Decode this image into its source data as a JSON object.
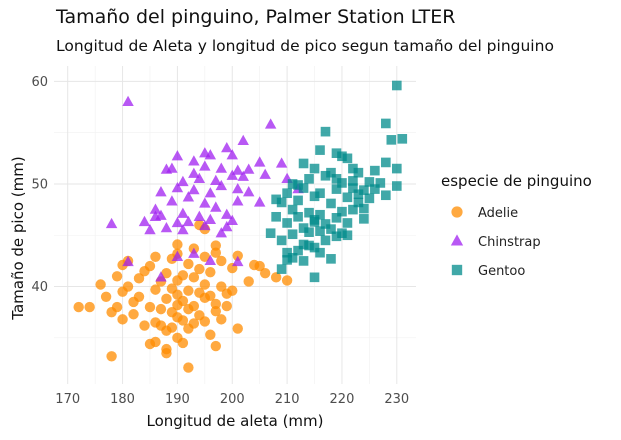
{
  "chart_data": {
    "type": "scatter",
    "title": "Tamaño del pinguino, Palmer Station LTER",
    "subtitle": "Longitud de Aleta y longitud de pico segun tamaño del pinguino",
    "xlabel": "Longitud de aleta (mm)",
    "ylabel": "Tamaño de pico (mm)",
    "xlim": [
      167.5,
      233.5
    ],
    "ylim": [
      30.5,
      61.5
    ],
    "xticks": [
      170,
      180,
      190,
      200,
      210,
      220,
      230
    ],
    "yticks": [
      40,
      50,
      60
    ],
    "grid": true,
    "legend": {
      "title": "especie de pinguino",
      "position": "right"
    },
    "series": [
      {
        "name": "Adelie",
        "color": "#FF8C00",
        "marker": "circle",
        "points": [
          [
            172,
            38
          ],
          [
            174,
            38
          ],
          [
            176,
            40.2
          ],
          [
            177,
            39
          ],
          [
            178,
            37.5
          ],
          [
            178,
            33.2
          ],
          [
            179,
            38
          ],
          [
            179,
            41
          ],
          [
            180,
            39.5
          ],
          [
            180,
            36.8
          ],
          [
            181,
            40
          ],
          [
            181,
            42.5
          ],
          [
            182,
            38.5
          ],
          [
            182,
            37.3
          ],
          [
            183,
            40.8
          ],
          [
            183,
            39
          ],
          [
            184,
            36.2
          ],
          [
            184,
            41.5
          ],
          [
            185,
            38
          ],
          [
            185,
            34.4
          ],
          [
            185,
            42
          ],
          [
            186,
            36.5
          ],
          [
            186,
            39.7
          ],
          [
            186,
            34.6
          ],
          [
            187,
            37.8
          ],
          [
            187,
            40.5
          ],
          [
            187,
            36.2
          ],
          [
            188,
            38.8
          ],
          [
            188,
            35.7
          ],
          [
            188,
            41.3
          ],
          [
            188,
            33.5
          ],
          [
            189,
            37.5
          ],
          [
            189,
            39.8
          ],
          [
            189,
            42.7
          ],
          [
            189,
            36
          ],
          [
            190,
            38.2
          ],
          [
            190,
            40.6
          ],
          [
            190,
            35
          ],
          [
            190,
            43.2
          ],
          [
            190,
            37
          ],
          [
            190,
            39.2
          ],
          [
            191,
            36.7
          ],
          [
            191,
            41.1
          ],
          [
            191,
            38.6
          ],
          [
            191,
            34.5
          ],
          [
            192,
            39.6
          ],
          [
            192,
            37.8
          ],
          [
            192,
            42.2
          ],
          [
            192,
            35.9
          ],
          [
            193,
            40.9
          ],
          [
            193,
            38.1
          ],
          [
            193,
            36.4
          ],
          [
            193,
            43.7
          ],
          [
            194,
            39.4
          ],
          [
            194,
            41.7
          ],
          [
            194,
            37.2
          ],
          [
            195,
            38.9
          ],
          [
            195,
            42.9
          ],
          [
            195,
            36.6
          ],
          [
            195,
            40.2
          ],
          [
            196,
            35.3
          ],
          [
            196,
            39.1
          ],
          [
            196,
            41.4
          ],
          [
            197,
            38.3
          ],
          [
            197,
            37.6
          ],
          [
            197,
            43.3
          ],
          [
            197,
            44
          ],
          [
            198,
            40
          ],
          [
            198,
            36.8
          ],
          [
            198,
            42.5
          ],
          [
            199,
            39.3
          ],
          [
            199,
            38.1
          ],
          [
            200,
            41.8
          ],
          [
            200,
            39.6
          ],
          [
            201,
            43
          ],
          [
            201,
            35.9
          ],
          [
            203,
            40.5
          ],
          [
            204,
            42.1
          ],
          [
            206,
            41.3
          ],
          [
            208,
            40.9
          ],
          [
            192,
            32.1
          ],
          [
            197,
            34.2
          ],
          [
            188,
            33.9
          ],
          [
            186,
            42.9
          ],
          [
            194,
            46
          ],
          [
            190,
            44.1
          ],
          [
            180,
            42.1
          ],
          [
            195,
            45.6
          ],
          [
            205,
            42
          ],
          [
            210,
            40.6
          ]
        ]
      },
      {
        "name": "Chinstrap",
        "color": "#A020F0",
        "marker": "triangle",
        "points": [
          [
            178,
            46.1
          ],
          [
            181,
            58
          ],
          [
            181,
            42.4
          ],
          [
            184,
            46.3
          ],
          [
            185,
            45.5
          ],
          [
            186,
            47.5
          ],
          [
            187,
            49.2
          ],
          [
            187,
            46.9
          ],
          [
            188,
            51.4
          ],
          [
            188,
            45.7
          ],
          [
            189,
            48.3
          ],
          [
            189,
            51.5
          ],
          [
            190,
            49.6
          ],
          [
            190,
            46.2
          ],
          [
            190,
            52.7
          ],
          [
            191,
            47.1
          ],
          [
            191,
            50.2
          ],
          [
            192,
            48.7
          ],
          [
            192,
            46.3
          ],
          [
            193,
            51
          ],
          [
            193,
            49.4
          ],
          [
            193,
            52.2
          ],
          [
            194,
            46.8
          ],
          [
            194,
            50.5
          ],
          [
            195,
            48.1
          ],
          [
            195,
            51.7
          ],
          [
            195,
            45.9
          ],
          [
            196,
            49.1
          ],
          [
            196,
            52.8
          ],
          [
            196,
            46.5
          ],
          [
            197,
            50.3
          ],
          [
            197,
            47.7
          ],
          [
            198,
            51.5
          ],
          [
            198,
            45.2
          ],
          [
            198,
            49.8
          ],
          [
            199,
            53.5
          ],
          [
            199,
            47
          ],
          [
            200,
            50.8
          ],
          [
            200,
            46.4
          ],
          [
            201,
            51.3
          ],
          [
            201,
            49.5
          ],
          [
            201,
            48.3
          ],
          [
            202,
            50.7
          ],
          [
            202,
            54.2
          ],
          [
            203,
            51.4
          ],
          [
            203,
            49.2
          ],
          [
            205,
            52.1
          ],
          [
            205,
            48.2
          ],
          [
            207,
            55.8
          ],
          [
            210,
            50.5
          ],
          [
            212,
            49.5
          ],
          [
            209,
            52
          ],
          [
            196,
            42.5
          ],
          [
            187,
            40.9
          ],
          [
            193,
            43.2
          ],
          [
            201,
            42.4
          ],
          [
            190,
            42.9
          ],
          [
            191,
            45.5
          ],
          [
            195,
            53
          ],
          [
            200,
            52.8
          ],
          [
            206,
            50.9
          ],
          [
            186,
            46.8
          ],
          [
            199,
            45.8
          ]
        ]
      },
      {
        "name": "Gentoo",
        "color": "#008B8B",
        "marker": "square",
        "points": [
          [
            207,
            45.2
          ],
          [
            208,
            46.8
          ],
          [
            209,
            48.2
          ],
          [
            209,
            44.5
          ],
          [
            210,
            46.2
          ],
          [
            210,
            49.1
          ],
          [
            210,
            43.3
          ],
          [
            211,
            47.5
          ],
          [
            211,
            45.1
          ],
          [
            211,
            50
          ],
          [
            212,
            43.5
          ],
          [
            212,
            46.8
          ],
          [
            212,
            48.4
          ],
          [
            213,
            45.7
          ],
          [
            213,
            49.6
          ],
          [
            213,
            44.1
          ],
          [
            214,
            47.2
          ],
          [
            214,
            50.5
          ],
          [
            214,
            45.3
          ],
          [
            215,
            46.5
          ],
          [
            215,
            48.8
          ],
          [
            215,
            43.8
          ],
          [
            215,
            51.5
          ],
          [
            216,
            45.4
          ],
          [
            216,
            49.1
          ],
          [
            216,
            47
          ],
          [
            217,
            46.1
          ],
          [
            217,
            50.8
          ],
          [
            217,
            44.5
          ],
          [
            218,
            48.1
          ],
          [
            218,
            45.6
          ],
          [
            218,
            51.1
          ],
          [
            219,
            46.7
          ],
          [
            219,
            49.5
          ],
          [
            219,
            44.9
          ],
          [
            220,
            47.3
          ],
          [
            220,
            50.1
          ],
          [
            220,
            45.2
          ],
          [
            221,
            48.7
          ],
          [
            221,
            46.2
          ],
          [
            221,
            52.5
          ],
          [
            222,
            49.6
          ],
          [
            222,
            47.5
          ],
          [
            222,
            50.3
          ],
          [
            223,
            48.2
          ],
          [
            223,
            51.1
          ],
          [
            224,
            49.4
          ],
          [
            224,
            46.6
          ],
          [
            225,
            50.2
          ],
          [
            225,
            48.6
          ],
          [
            226,
            51.3
          ],
          [
            227,
            50.1
          ],
          [
            228,
            55.9
          ],
          [
            228,
            52.1
          ],
          [
            229,
            54.3
          ],
          [
            230,
            59.6
          ],
          [
            230,
            51.5
          ],
          [
            231,
            54.4
          ],
          [
            216,
            53.3
          ],
          [
            217,
            55.1
          ],
          [
            219,
            50.5
          ],
          [
            223,
            49
          ],
          [
            212,
            49.9
          ],
          [
            210,
            42.6
          ],
          [
            213,
            42.5
          ],
          [
            215,
            40.9
          ],
          [
            218,
            42.7
          ],
          [
            209,
            41.7
          ],
          [
            214,
            44
          ],
          [
            216,
            43.3
          ],
          [
            220,
            52.7
          ],
          [
            213,
            52
          ],
          [
            221,
            45
          ],
          [
            224,
            47.6
          ],
          [
            226,
            49.5
          ],
          [
            208,
            48.5
          ],
          [
            211,
            42.8
          ],
          [
            215,
            46.3
          ],
          [
            219,
            53
          ],
          [
            222,
            51.5
          ],
          [
            230,
            49.8
          ],
          [
            228,
            48.9
          ]
        ]
      }
    ]
  }
}
